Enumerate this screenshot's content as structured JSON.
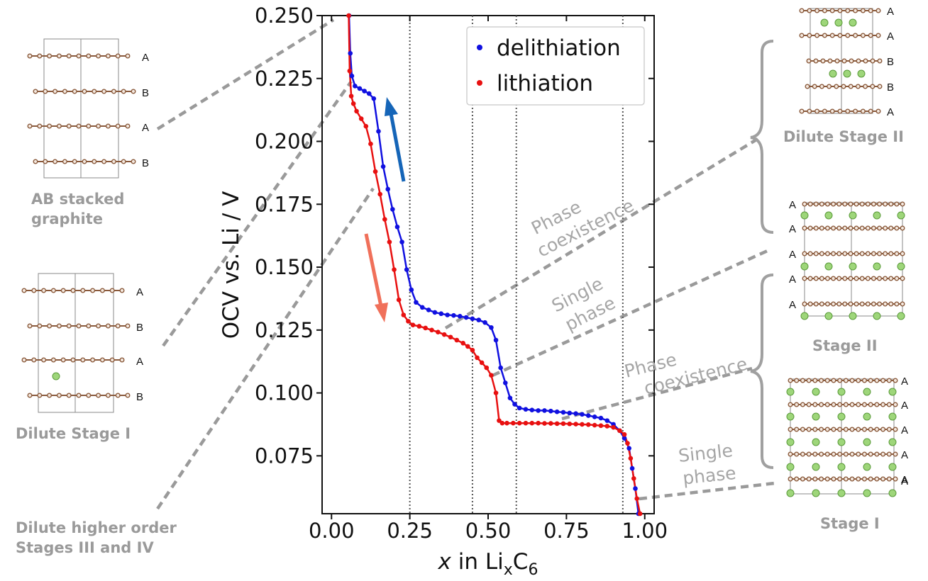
{
  "chart_data": {
    "type": "scatter",
    "xlabel": "x in LixC6",
    "xlabel_parts": {
      "pre": "x",
      "mid": " in Li",
      "sub1": "x",
      "mid2": "C",
      "sub2": "6"
    },
    "ylabel": "OCV vs. Li / V",
    "xlim": [
      -0.03,
      1.03
    ],
    "ylim": [
      0.052,
      0.25
    ],
    "x_ticks": [
      "0.00",
      "0.25",
      "0.50",
      "0.75",
      "1.00"
    ],
    "x_tick_values": [
      0,
      0.25,
      0.5,
      0.75,
      1.0
    ],
    "y_ticks": [
      "0.075",
      "0.100",
      "0.125",
      "0.150",
      "0.175",
      "0.200",
      "0.225",
      "0.250"
    ],
    "y_tick_values": [
      0.075,
      0.1,
      0.125,
      0.15,
      0.175,
      0.2,
      0.225,
      0.25
    ],
    "grid": false,
    "legend_position": "top-right",
    "phase_boundaries_x": [
      0.25,
      0.45,
      0.59,
      0.93
    ],
    "series": [
      {
        "name": "delithiation",
        "color": "#1010e0",
        "x": [
          0.056,
          0.06,
          0.065,
          0.075,
          0.09,
          0.105,
          0.12,
          0.135,
          0.15,
          0.165,
          0.18,
          0.195,
          0.21,
          0.225,
          0.24,
          0.255,
          0.27,
          0.29,
          0.31,
          0.33,
          0.35,
          0.37,
          0.39,
          0.41,
          0.43,
          0.45,
          0.47,
          0.49,
          0.51,
          0.525,
          0.54,
          0.555,
          0.57,
          0.585,
          0.6,
          0.62,
          0.64,
          0.66,
          0.68,
          0.7,
          0.72,
          0.74,
          0.76,
          0.78,
          0.8,
          0.82,
          0.84,
          0.86,
          0.88,
          0.9,
          0.92,
          0.935,
          0.95,
          0.96,
          0.97,
          0.98
        ],
        "y": [
          0.25,
          0.235,
          0.226,
          0.222,
          0.221,
          0.22,
          0.219,
          0.217,
          0.204,
          0.19,
          0.181,
          0.173,
          0.166,
          0.16,
          0.149,
          0.141,
          0.136,
          0.134,
          0.133,
          0.132,
          0.1315,
          0.131,
          0.1308,
          0.1305,
          0.13,
          0.1295,
          0.129,
          0.128,
          0.126,
          0.121,
          0.11,
          0.104,
          0.098,
          0.0955,
          0.094,
          0.0935,
          0.0932,
          0.093,
          0.093,
          0.0928,
          0.0925,
          0.0923,
          0.092,
          0.0918,
          0.0915,
          0.091,
          0.0905,
          0.09,
          0.089,
          0.0875,
          0.085,
          0.082,
          0.078,
          0.07,
          0.062,
          0.052
        ]
      },
      {
        "name": "lithiation",
        "color": "#e81010",
        "x": [
          0.985,
          0.975,
          0.965,
          0.955,
          0.945,
          0.935,
          0.92,
          0.9,
          0.88,
          0.86,
          0.84,
          0.82,
          0.8,
          0.78,
          0.76,
          0.74,
          0.72,
          0.7,
          0.68,
          0.66,
          0.64,
          0.62,
          0.6,
          0.58,
          0.56,
          0.545,
          0.535,
          0.525,
          0.51,
          0.495,
          0.48,
          0.465,
          0.45,
          0.435,
          0.42,
          0.4,
          0.38,
          0.36,
          0.34,
          0.32,
          0.3,
          0.28,
          0.26,
          0.245,
          0.23,
          0.215,
          0.2,
          0.185,
          0.17,
          0.155,
          0.14,
          0.125,
          0.11,
          0.095,
          0.08,
          0.07,
          0.063,
          0.058,
          0.055
        ],
        "y": [
          0.052,
          0.058,
          0.066,
          0.074,
          0.08,
          0.0835,
          0.085,
          0.0863,
          0.0868,
          0.087,
          0.0872,
          0.0874,
          0.0875,
          0.0876,
          0.0877,
          0.0878,
          0.0878,
          0.0879,
          0.0879,
          0.088,
          0.088,
          0.088,
          0.088,
          0.088,
          0.088,
          0.088,
          0.089,
          0.1,
          0.107,
          0.11,
          0.112,
          0.114,
          0.117,
          0.1185,
          0.1198,
          0.121,
          0.1222,
          0.1232,
          0.1242,
          0.125,
          0.1258,
          0.1265,
          0.127,
          0.1285,
          0.131,
          0.137,
          0.149,
          0.16,
          0.169,
          0.179,
          0.188,
          0.199,
          0.206,
          0.209,
          0.212,
          0.215,
          0.218,
          0.228,
          0.25
        ]
      }
    ]
  },
  "structures": {
    "ab_graphite": {
      "caption_line1": "AB stacked",
      "caption_line2": "graphite",
      "layers": [
        "A",
        "B",
        "A",
        "B"
      ]
    },
    "dilute_stage_1": {
      "caption": "Dilute Stage I",
      "layers": [
        "A",
        "B",
        "A",
        "B"
      ]
    },
    "dilute_higher": {
      "caption_line1": "Dilute higher order",
      "caption_line2": "Stages III and IV"
    },
    "dilute_stage_2": {
      "caption": "Dilute Stage II",
      "layers": [
        "A",
        "A",
        "B",
        "B",
        "A"
      ]
    },
    "stage_2": {
      "caption": "Stage II",
      "layers": [
        "A",
        "A",
        "A",
        "A",
        "A"
      ]
    },
    "stage_1": {
      "caption": "Stage I",
      "layers": [
        "A",
        "A",
        "A",
        "A",
        "A",
        "A"
      ]
    }
  },
  "annotations": {
    "phase_coexistence_1": {
      "line1": "Phase",
      "line2": "coexistence"
    },
    "single_phase_1": {
      "line1": "Single",
      "line2": "phase"
    },
    "phase_coexistence_2": {
      "line1": "Phase",
      "line2": "coexistence"
    },
    "single_phase_2": {
      "line1": "Single",
      "line2": "phase"
    }
  },
  "colors": {
    "carbon": "#8a5a3c",
    "lithium": "#9ed67a",
    "delithiation_arrow": "#1565b8",
    "lithiation_arrow": "#f0705a",
    "annotation_gray": "#999999"
  }
}
